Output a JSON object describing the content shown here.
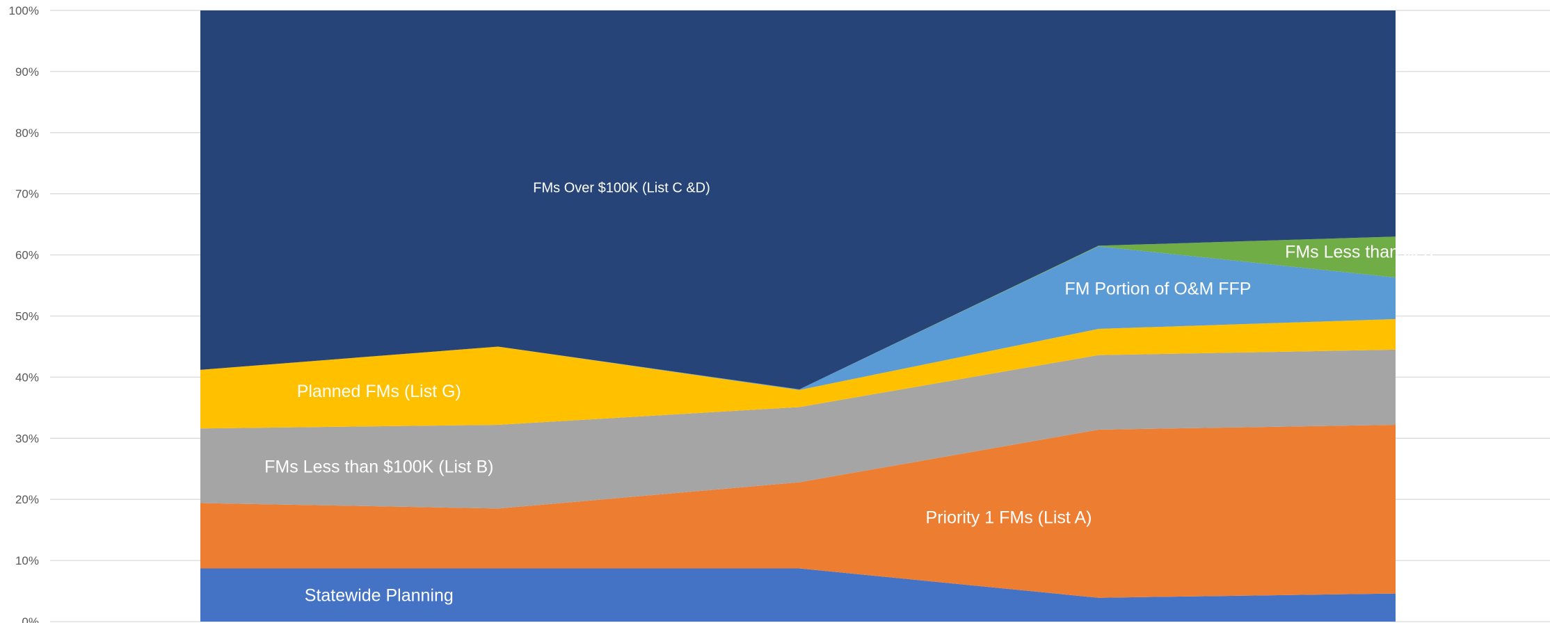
{
  "chart_data": {
    "type": "area",
    "stacked": "percent",
    "x_count": 5,
    "ylim": [
      0,
      100
    ],
    "yticks": [
      "0%",
      "10%",
      "20%",
      "30%",
      "40%",
      "50%",
      "60%",
      "70%",
      "80%",
      "90%",
      "100%"
    ],
    "grid": true,
    "legend": "none",
    "series": [
      {
        "name": "Statewide Planning",
        "color": "#4472C4",
        "values": [
          8.7,
          8.7,
          8.7,
          3.9,
          4.6
        ]
      },
      {
        "name": "Priority 1 FMs (List A)",
        "color": "#ED7D31",
        "values": [
          10.7,
          9.8,
          14.1,
          27.5,
          27.6
        ]
      },
      {
        "name": "FMs Less than $100K (List B)",
        "color": "#A5A5A5",
        "values": [
          12.2,
          13.7,
          12.3,
          12.2,
          12.3
        ]
      },
      {
        "name": "Planned FMs (List G)",
        "color": "#FFC000",
        "values": [
          9.6,
          12.8,
          2.8,
          4.3,
          5.0
        ]
      },
      {
        "name": "FM Portion of O&M FFP",
        "color": "#5B9BD5",
        "values": [
          0,
          0,
          0.1,
          13.5,
          6.8
        ]
      },
      {
        "name": "FMs Less than $2K",
        "color": "#70AD47",
        "values": [
          0,
          0,
          0,
          0.1,
          6.7
        ]
      },
      {
        "name": "FMs Over $100K (List C &D)",
        "color": "#264478",
        "values": [
          58.8,
          55.0,
          62.0,
          38.5,
          37.0
        ]
      }
    ]
  }
}
